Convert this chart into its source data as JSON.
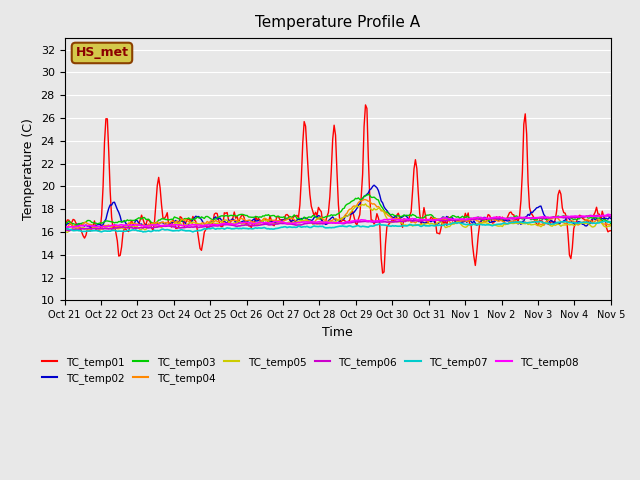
{
  "title": "Temperature Profile A",
  "xlabel": "Time",
  "ylabel": "Temperature (C)",
  "ylim": [
    10,
    33
  ],
  "yticks": [
    10,
    12,
    14,
    16,
    18,
    20,
    22,
    24,
    26,
    28,
    30,
    32
  ],
  "background_color": "#e8e8e8",
  "plot_bg_color": "#e8e8e8",
  "annotation_text": "HS_met",
  "annotation_bg": "#d4c84a",
  "annotation_border": "#8b4000",
  "annotation_text_color": "#8b0000",
  "series_colors": {
    "TC_temp01": "#ff0000",
    "TC_temp02": "#0000cc",
    "TC_temp03": "#00cc00",
    "TC_temp04": "#ff8800",
    "TC_temp05": "#cccc00",
    "TC_temp06": "#cc00cc",
    "TC_temp07": "#00cccc",
    "TC_temp08": "#ff00ff"
  },
  "x_tick_labels": [
    "Oct 21",
    "Oct 22",
    "Oct 23",
    "Oct 24",
    "Oct 25",
    "Oct 26",
    "Oct 27",
    "Oct 28",
    "Oct 29",
    "Oct 30",
    "Oct 31",
    "Nov 1",
    "Nov 2",
    "Nov 3",
    "Nov 4",
    "Nov 5"
  ]
}
